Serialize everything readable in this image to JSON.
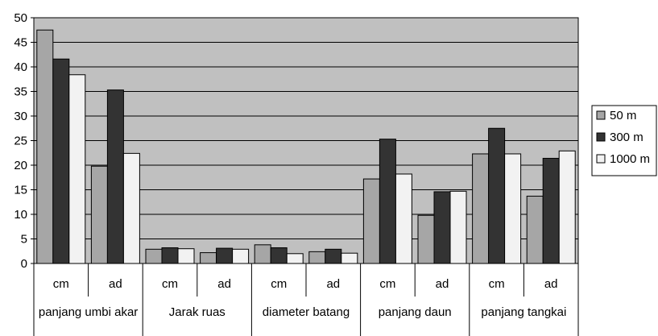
{
  "chart_data": {
    "type": "bar",
    "title": "",
    "xlabel": "",
    "ylabel": "",
    "ylim": [
      0,
      50
    ],
    "yticks": [
      0,
      5,
      10,
      15,
      20,
      25,
      30,
      35,
      40,
      45,
      50
    ],
    "grid": true,
    "legend_position": "right",
    "groups": [
      "panjang umbi akar",
      "Jarak ruas",
      "diameter batang",
      "panjang daun",
      "panjang tangkai"
    ],
    "categories": [
      "cm",
      "ad",
      "cm",
      "ad",
      "cm",
      "ad",
      "cm",
      "ad",
      "cm",
      "ad"
    ],
    "series": [
      {
        "name": "50 m",
        "color": "#a6a6a6",
        "values": [
          47.5,
          19.8,
          2.9,
          2.2,
          3.8,
          2.4,
          17.2,
          9.8,
          22.3,
          13.7
        ]
      },
      {
        "name": "300 m",
        "color": "#333333",
        "values": [
          41.6,
          35.3,
          3.2,
          3.1,
          3.2,
          2.9,
          25.3,
          14.6,
          27.5,
          21.4
        ]
      },
      {
        "name": "1000 m",
        "color": "#f2f2f2",
        "values": [
          38.4,
          22.4,
          3.0,
          2.9,
          2.0,
          2.1,
          18.2,
          14.7,
          22.3,
          22.9
        ]
      }
    ],
    "plot_background": "#c0c0c0"
  }
}
